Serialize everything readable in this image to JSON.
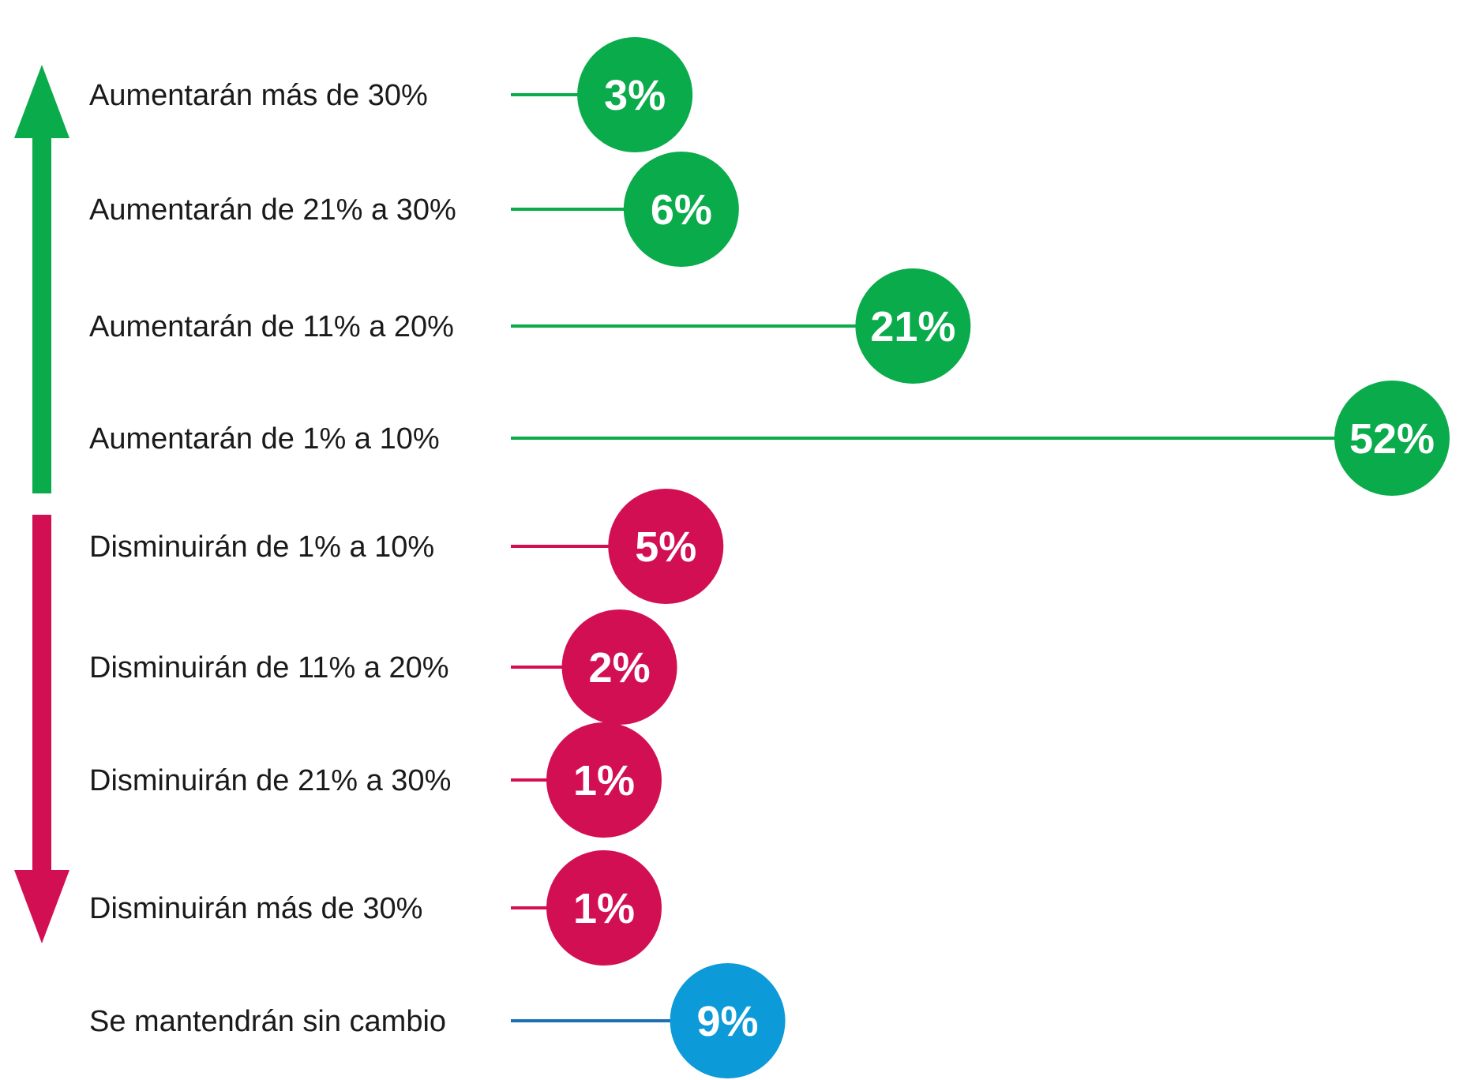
{
  "chart_data": {
    "type": "lollipop",
    "title": "",
    "xlabel": "",
    "ylabel": "",
    "xlim": [
      0,
      52
    ],
    "grid": false,
    "legend": "none",
    "categories": [
      "Aumentarán más de 30%",
      "Aumentarán de 21% a 30%",
      "Aumentarán de 11% a 20%",
      "Aumentarán de 1% a 10%",
      "Disminuirán de 1% a 10%",
      "Disminuirán de 11% a 20%",
      "Disminuirán de 21% a 30%",
      "Disminuirán más de 30%",
      "Se mantendrán sin cambio"
    ],
    "values": [
      3,
      6,
      21,
      52,
      5,
      2,
      1,
      1,
      9
    ],
    "value_labels": [
      "3%",
      "6%",
      "21%",
      "52%",
      "5%",
      "2%",
      "1%",
      "1%",
      "9%"
    ],
    "groups": [
      "increase",
      "increase",
      "increase",
      "increase",
      "decrease",
      "decrease",
      "decrease",
      "decrease",
      "unchanged"
    ],
    "colors": {
      "increase": "#0aab4b",
      "decrease": "#d30f54",
      "unchanged": "#0c9ad8",
      "unchanged_line": "#1a6fb5"
    },
    "arrows": [
      {
        "name": "up-arrow",
        "direction": "up",
        "color": "#0aab4b"
      },
      {
        "name": "down-arrow",
        "direction": "down",
        "color": "#d30f54"
      }
    ]
  }
}
